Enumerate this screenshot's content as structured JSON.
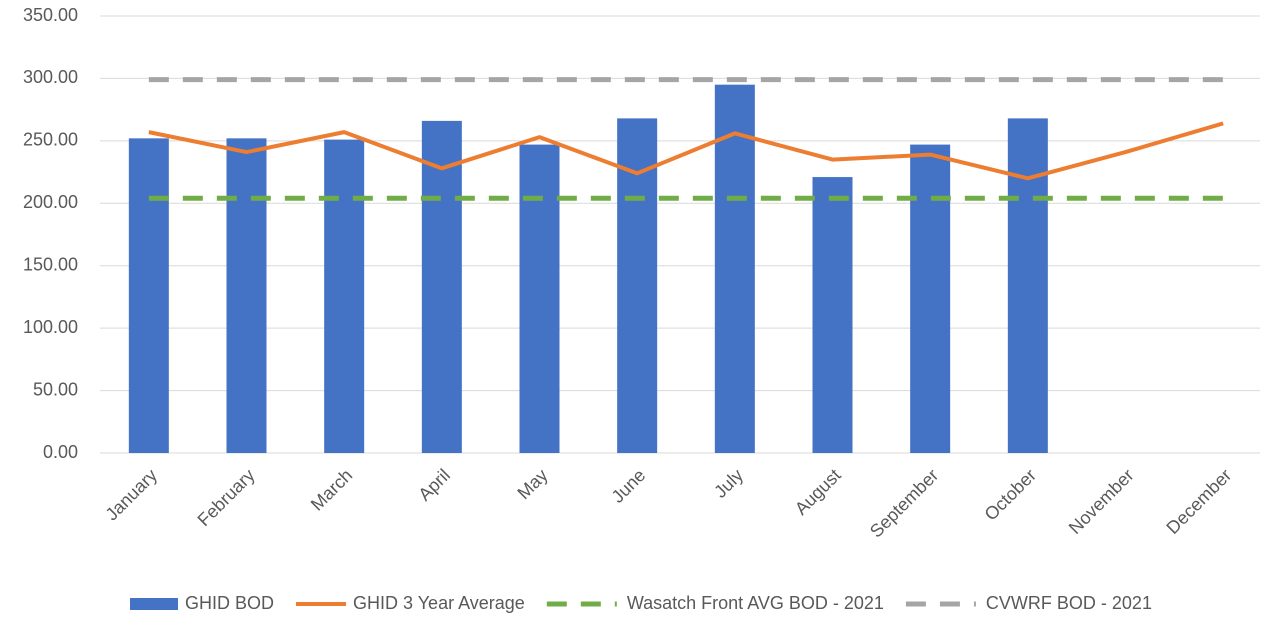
{
  "chart_data": {
    "type": "bar",
    "categories": [
      "January",
      "February",
      "March",
      "April",
      "May",
      "June",
      "July",
      "August",
      "September",
      "October",
      "November",
      "December"
    ],
    "series": [
      {
        "name": "GHID BOD",
        "type": "bar",
        "color": "#4472c4",
        "values": [
          252,
          252,
          251,
          266,
          247,
          268,
          295,
          221,
          247,
          268,
          null,
          null
        ]
      },
      {
        "name": "GHID 3 Year Average",
        "type": "line",
        "color": "#ed7d31",
        "dashed": false,
        "values": [
          257,
          241,
          257,
          228,
          253,
          224,
          256,
          235,
          239,
          220,
          241,
          264
        ]
      },
      {
        "name": "Wasatch Front AVG BOD - 2021",
        "type": "line",
        "color": "#70ad47",
        "dashed": true,
        "values": [
          204,
          204,
          204,
          204,
          204,
          204,
          204,
          204,
          204,
          204,
          204,
          204
        ]
      },
      {
        "name": "CVWRF BOD - 2021",
        "type": "line",
        "color": "#a5a5a5",
        "dashed": true,
        "values": [
          299,
          299,
          299,
          299,
          299,
          299,
          299,
          299,
          299,
          299,
          299,
          299
        ]
      }
    ],
    "ylim": [
      0,
      350
    ],
    "yticks": [
      {
        "value": 0,
        "label": "0.00"
      },
      {
        "value": 50,
        "label": "50.00"
      },
      {
        "value": 100,
        "label": "100.00"
      },
      {
        "value": 150,
        "label": "150.00"
      },
      {
        "value": 200,
        "label": "200.00"
      },
      {
        "value": 250,
        "label": "250.00"
      },
      {
        "value": 300,
        "label": "300.00"
      },
      {
        "value": 350,
        "label": "350.00"
      }
    ],
    "grid": true,
    "legend": "bottom"
  }
}
